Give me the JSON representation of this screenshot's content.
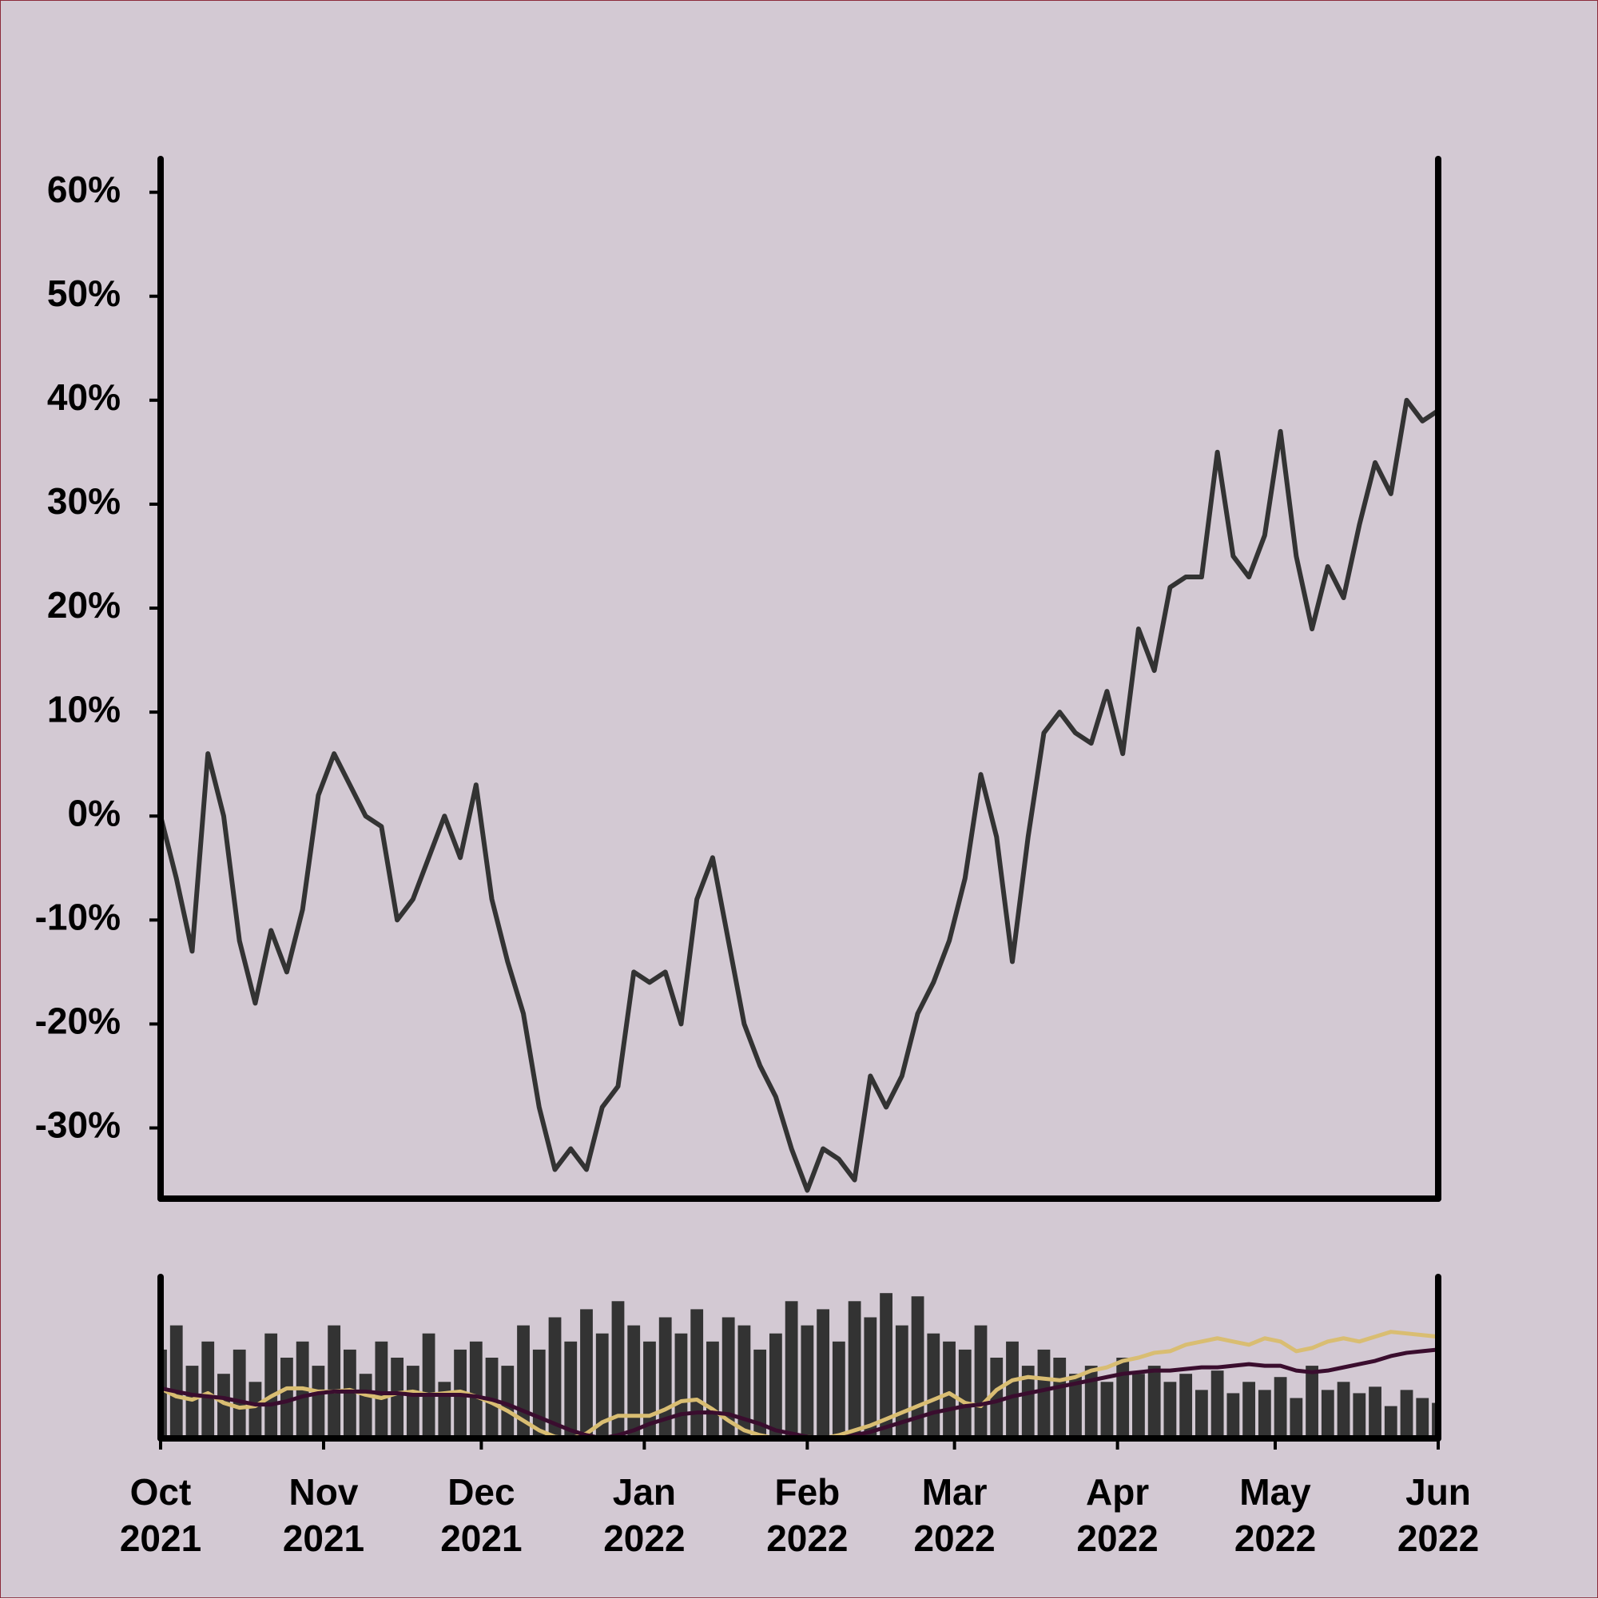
{
  "chart_data": [
    {
      "type": "line",
      "x": [
        "2021-10-01",
        "2021-10-04",
        "2021-10-07",
        "2021-10-10",
        "2021-10-13",
        "2021-10-16",
        "2021-10-19",
        "2021-10-22",
        "2021-10-25",
        "2021-10-28",
        "2021-10-31",
        "2021-11-03",
        "2021-11-06",
        "2021-11-09",
        "2021-11-12",
        "2021-11-15",
        "2021-11-18",
        "2021-11-21",
        "2021-11-24",
        "2021-11-27",
        "2021-11-30",
        "2021-12-03",
        "2021-12-06",
        "2021-12-09",
        "2021-12-12",
        "2021-12-15",
        "2021-12-18",
        "2021-12-21",
        "2021-12-24",
        "2021-12-27",
        "2021-12-30",
        "2022-01-02",
        "2022-01-05",
        "2022-01-08",
        "2022-01-11",
        "2022-01-14",
        "2022-01-17",
        "2022-01-20",
        "2022-01-23",
        "2022-01-26",
        "2022-01-29",
        "2022-02-01",
        "2022-02-04",
        "2022-02-07",
        "2022-02-10",
        "2022-02-13",
        "2022-02-16",
        "2022-02-19",
        "2022-02-22",
        "2022-02-25",
        "2022-02-28",
        "2022-03-03",
        "2022-03-06",
        "2022-03-09",
        "2022-03-12",
        "2022-03-15",
        "2022-03-18",
        "2022-03-21",
        "2022-03-24",
        "2022-03-27",
        "2022-03-30",
        "2022-04-02",
        "2022-04-05",
        "2022-04-08",
        "2022-04-11",
        "2022-04-14",
        "2022-04-17",
        "2022-04-20",
        "2022-04-23",
        "2022-04-26",
        "2022-04-29",
        "2022-05-02",
        "2022-05-05",
        "2022-05-08",
        "2022-05-11",
        "2022-05-14",
        "2022-05-17",
        "2022-05-20",
        "2022-05-23",
        "2022-05-26",
        "2022-05-29",
        "2022-06-01"
      ],
      "series": [
        {
          "color": "#333333",
          "values": [
            0,
            -6,
            -13,
            6,
            0,
            -12,
            -18,
            -11,
            -15,
            -9,
            2,
            6,
            3,
            0,
            -1,
            -10,
            -8,
            -4,
            0,
            -4,
            3,
            -8,
            -14,
            -19,
            -28,
            -34,
            -32,
            -34,
            -28,
            -26,
            -15,
            -16,
            -15,
            -20,
            -8,
            -4,
            -12,
            -20,
            -24,
            -27,
            -32,
            -36,
            -32,
            -33,
            -35,
            -25,
            -28,
            -25,
            -19,
            -16,
            -12,
            -6,
            4,
            -2,
            -14,
            -2,
            8,
            10,
            8,
            7,
            12,
            6,
            18,
            14,
            22,
            23,
            23,
            35,
            25,
            23,
            27,
            37,
            25,
            18,
            24,
            21,
            28,
            34,
            31,
            40,
            38,
            39
          ]
        }
      ],
      "xlim": [
        "2021-10-01",
        "2022-06-01"
      ],
      "ylim": [
        -36.8,
        63.2
      ],
      "yticks": [
        {
          "value": -30,
          "label": "-30%"
        },
        {
          "value": -20,
          "label": "-20%"
        },
        {
          "value": -10,
          "label": "-10%"
        },
        {
          "value": 0,
          "label": "0%"
        },
        {
          "value": 10,
          "label": "10%"
        },
        {
          "value": 20,
          "label": "20%"
        },
        {
          "value": 30,
          "label": "30%"
        },
        {
          "value": 40,
          "label": "40%"
        },
        {
          "value": 50,
          "label": "50%"
        },
        {
          "value": 60,
          "label": "60%"
        }
      ]
    },
    {
      "type": "bar-line",
      "x": [
        "2021-10-01",
        "2021-10-04",
        "2021-10-07",
        "2021-10-10",
        "2021-10-13",
        "2021-10-16",
        "2021-10-19",
        "2021-10-22",
        "2021-10-25",
        "2021-10-28",
        "2021-10-31",
        "2021-11-03",
        "2021-11-06",
        "2021-11-09",
        "2021-11-12",
        "2021-11-15",
        "2021-11-18",
        "2021-11-21",
        "2021-11-24",
        "2021-11-27",
        "2021-11-30",
        "2021-12-03",
        "2021-12-06",
        "2021-12-09",
        "2021-12-12",
        "2021-12-15",
        "2021-12-18",
        "2021-12-21",
        "2021-12-24",
        "2021-12-27",
        "2021-12-30",
        "2022-01-02",
        "2022-01-05",
        "2022-01-08",
        "2022-01-11",
        "2022-01-14",
        "2022-01-17",
        "2022-01-20",
        "2022-01-23",
        "2022-01-26",
        "2022-01-29",
        "2022-02-01",
        "2022-02-04",
        "2022-02-07",
        "2022-02-10",
        "2022-02-13",
        "2022-02-16",
        "2022-02-19",
        "2022-02-22",
        "2022-02-25",
        "2022-02-28",
        "2022-03-03",
        "2022-03-06",
        "2022-03-09",
        "2022-03-12",
        "2022-03-15",
        "2022-03-18",
        "2022-03-21",
        "2022-03-24",
        "2022-03-27",
        "2022-03-30",
        "2022-04-02",
        "2022-04-05",
        "2022-04-08",
        "2022-04-11",
        "2022-04-14",
        "2022-04-17",
        "2022-04-20",
        "2022-04-23",
        "2022-04-26",
        "2022-04-29",
        "2022-05-02",
        "2022-05-05",
        "2022-05-08",
        "2022-05-11",
        "2022-05-14",
        "2022-05-17",
        "2022-05-20",
        "2022-05-23",
        "2022-05-26",
        "2022-05-29",
        "2022-06-01"
      ],
      "series": [
        {
          "type": "bar",
          "color": "#333333",
          "values": [
            55,
            70,
            45,
            60,
            40,
            55,
            35,
            65,
            50,
            60,
            45,
            70,
            55,
            40,
            60,
            50,
            45,
            65,
            35,
            55,
            60,
            50,
            45,
            70,
            55,
            75,
            60,
            80,
            65,
            85,
            70,
            60,
            75,
            65,
            80,
            60,
            75,
            70,
            55,
            65,
            85,
            70,
            80,
            60,
            85,
            75,
            90,
            70,
            88,
            65,
            60,
            55,
            70,
            50,
            60,
            45,
            55,
            50,
            40,
            45,
            35,
            50,
            40,
            45,
            35,
            40,
            30,
            42,
            28,
            35,
            30,
            38,
            25,
            45,
            30,
            35,
            28,
            32,
            20,
            30,
            25,
            22
          ]
        },
        {
          "type": "line",
          "color": "#d9bd72",
          "values": [
            31,
            26,
            24,
            28,
            22,
            19,
            20,
            26,
            31,
            31,
            29,
            29,
            30,
            27,
            25,
            28,
            29,
            27,
            28,
            29,
            26,
            22,
            17,
            11,
            5,
            1,
            0,
            3,
            10,
            14,
            14,
            14,
            18,
            23,
            24,
            18,
            11,
            5,
            2,
            0,
            1,
            1,
            0,
            2,
            5,
            8,
            12,
            16,
            20,
            24,
            28,
            22,
            20,
            30,
            36,
            38,
            37,
            36,
            38,
            42,
            44,
            48,
            50,
            53,
            54,
            58,
            60,
            62,
            60,
            58,
            62,
            60,
            54,
            56,
            60,
            62,
            60,
            63,
            66,
            65,
            64,
            63
          ]
        },
        {
          "type": "line",
          "color": "#3a0d2e",
          "values": [
            31,
            29,
            27,
            26,
            25,
            23,
            21,
            21,
            23,
            26,
            28,
            29,
            29,
            29,
            28,
            28,
            27,
            27,
            27,
            27,
            26,
            24,
            21,
            17,
            13,
            9,
            5,
            2,
            0,
            2,
            5,
            9,
            12,
            15,
            16,
            16,
            15,
            12,
            9,
            5,
            3,
            1,
            0,
            0,
            2,
            4,
            7,
            10,
            13,
            16,
            18,
            20,
            21,
            23,
            26,
            28,
            30,
            32,
            34,
            36,
            38,
            40,
            41,
            42,
            42,
            43,
            44,
            44,
            45,
            46,
            45,
            45,
            42,
            41,
            42,
            44,
            46,
            48,
            51,
            53,
            54,
            55
          ]
        }
      ],
      "xlim": [
        "2021-10-01",
        "2022-06-01"
      ],
      "ylim": [
        0,
        100
      ],
      "xticks": [
        {
          "value": "2021-10-01",
          "label": "Oct 2021"
        },
        {
          "value": "2021-11-01",
          "label": "Nov 2021"
        },
        {
          "value": "2021-12-01",
          "label": "Dec 2021"
        },
        {
          "value": "2022-01-01",
          "label": "Jan 2022"
        },
        {
          "value": "2022-02-01",
          "label": "Feb 2022"
        },
        {
          "value": "2022-03-01",
          "label": "Mar 2022"
        },
        {
          "value": "2022-04-01",
          "label": "Apr 2022"
        },
        {
          "value": "2022-05-01",
          "label": "May 2022"
        },
        {
          "value": "2022-06-01",
          "label": "Jun 2022"
        }
      ]
    }
  ]
}
